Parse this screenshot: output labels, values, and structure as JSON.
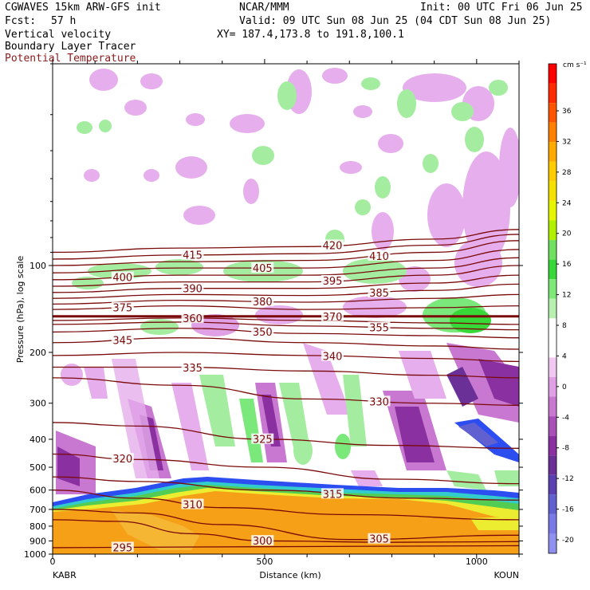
{
  "header": {
    "model": "CGWAVES 15km ARW-GFS init",
    "org": "NCAR/MMM",
    "init": "Init: 00 UTC Fri 06 Jun 25",
    "fcst_label": "Fcst:",
    "fcst_value": "57 h",
    "valid": "Valid: 09 UTC Sun 08 Jun 25 (04 CDT Sun 08 Jun 25)",
    "field1": "Vertical velocity",
    "field2": "Boundary Layer Tracer",
    "field3": "Potential Temperature",
    "xy": "XY= 187.4,173.8 to 191.8,100.1"
  },
  "colors": {
    "theta_contour": "#7a0a0a",
    "field3_text": "#8b1a1a",
    "tracer_orange": "#f5a017",
    "tracer_yellow": "#ecec30",
    "tracer_green": "#52cc52",
    "tracer_cyan": "#33cccc",
    "tracer_blue": "#2c4df0"
  },
  "chart_data": {
    "type": "heatmap",
    "xlabel": "Distance (km)",
    "ylabel": "Pressure (hPa), log scale",
    "x_ticks": [
      "0",
      "500",
      "1000"
    ],
    "y_ticks": [
      "100",
      "200",
      "300",
      "400",
      "500",
      "600",
      "700",
      "800",
      "900",
      "1000"
    ],
    "xlim": [
      0,
      1100
    ],
    "ylim": [
      1000,
      20
    ],
    "y_scale": "log",
    "start_label": "KABR",
    "end_label": "KOUN",
    "colorbar": {
      "unit": "cm s⁻¹",
      "ticks": [
        "36",
        "32",
        "28",
        "24",
        "20",
        "16",
        "12",
        "8",
        "4",
        "0",
        "-4",
        "-8",
        "-12",
        "-16",
        "-20"
      ],
      "colors": [
        "#ff0000",
        "#ff2a00",
        "#ff5500",
        "#ff8000",
        "#ffaa00",
        "#ffcc00",
        "#f5e000",
        "#e6f500",
        "#b0f000",
        "#70e060",
        "#38d838",
        "#7ee878",
        "#b8f0b0",
        "#ffffff",
        "#ffffff",
        "#f0c8f0",
        "#e0a0e6",
        "#c878d0",
        "#a850b8",
        "#8a30a0",
        "#6a3098",
        "#5a40b0",
        "#6060d0",
        "#7a7ae6",
        "#9090f0"
      ]
    },
    "theta_contours": [
      {
        "label": "295",
        "points": [
          [
            0,
            950
          ],
          [
            300,
            945
          ],
          [
            700,
            940
          ],
          [
            1100,
            935
          ]
        ]
      },
      {
        "label": "300",
        "points": [
          [
            0,
            760
          ],
          [
            150,
            770
          ],
          [
            330,
            850
          ],
          [
            500,
            900
          ],
          [
            800,
            910
          ],
          [
            1100,
            905
          ]
        ]
      },
      {
        "label": "305",
        "points": [
          [
            0,
            700
          ],
          [
            200,
            720
          ],
          [
            400,
            790
          ],
          [
            700,
            890
          ],
          [
            1100,
            860
          ]
        ]
      },
      {
        "label": "310",
        "points": [
          [
            0,
            600
          ],
          [
            200,
            640
          ],
          [
            400,
            690
          ],
          [
            700,
            730
          ],
          [
            1100,
            760
          ]
        ]
      },
      {
        "label": "315",
        "points": [
          [
            0,
            540
          ],
          [
            200,
            560
          ],
          [
            500,
            600
          ],
          [
            850,
            640
          ],
          [
            1100,
            650
          ]
        ]
      },
      {
        "label": "320",
        "points": [
          [
            0,
            450
          ],
          [
            200,
            470
          ],
          [
            500,
            500
          ],
          [
            800,
            550
          ],
          [
            1100,
            570
          ]
        ]
      },
      {
        "label": "325",
        "points": [
          [
            0,
            350
          ],
          [
            200,
            360
          ],
          [
            500,
            400
          ],
          [
            800,
            420
          ],
          [
            1100,
            430
          ]
        ]
      },
      {
        "label": "330",
        "points": [
          [
            0,
            245
          ],
          [
            300,
            260
          ],
          [
            600,
            290
          ],
          [
            900,
            300
          ],
          [
            1100,
            305
          ]
        ]
      },
      {
        "label": "335",
        "points": [
          [
            0,
            225
          ],
          [
            300,
            225
          ],
          [
            600,
            232
          ],
          [
            900,
            240
          ],
          [
            1100,
            245
          ]
        ]
      },
      {
        "label": "340",
        "points": [
          [
            0,
            205
          ],
          [
            300,
            200
          ],
          [
            600,
            205
          ],
          [
            900,
            210
          ],
          [
            1100,
            215
          ]
        ]
      },
      {
        "label": "345",
        "points": [
          [
            0,
            185
          ],
          [
            300,
            178
          ],
          [
            600,
            185
          ],
          [
            900,
            190
          ],
          [
            1100,
            195
          ]
        ]
      },
      {
        "label": "350",
        "points": [
          [
            0,
            170
          ],
          [
            300,
            165
          ],
          [
            600,
            172
          ],
          [
            900,
            175
          ],
          [
            1100,
            178
          ]
        ]
      },
      {
        "label": "355",
        "points": [
          [
            0,
            160
          ],
          [
            300,
            157
          ],
          [
            600,
            162
          ],
          [
            900,
            165
          ],
          [
            1100,
            167
          ]
        ]
      },
      {
        "label": "360",
        "points": [
          [
            0,
            155
          ],
          [
            300,
            152
          ],
          [
            600,
            155
          ],
          [
            900,
            158
          ],
          [
            1100,
            160
          ]
        ]
      },
      {
        "label": "370",
        "points": [
          [
            0,
            150
          ],
          [
            1100,
            150
          ]
        ]
      },
      {
        "label": "375",
        "points": [
          [
            0,
            142
          ],
          [
            300,
            138
          ],
          [
            600,
            142
          ],
          [
            900,
            140
          ],
          [
            1100,
            138
          ]
        ]
      },
      {
        "label": "380",
        "points": [
          [
            0,
            136
          ],
          [
            300,
            132
          ],
          [
            600,
            134
          ],
          [
            900,
            130
          ],
          [
            1100,
            126
          ]
        ]
      },
      {
        "label": "385",
        "points": [
          [
            0,
            130
          ],
          [
            300,
            126
          ],
          [
            600,
            127
          ],
          [
            900,
            122
          ],
          [
            1100,
            116
          ]
        ]
      },
      {
        "label": "390",
        "points": [
          [
            0,
            124
          ],
          [
            300,
            120
          ],
          [
            600,
            120
          ],
          [
            900,
            115
          ],
          [
            1100,
            108
          ]
        ]
      },
      {
        "label": "395",
        "points": [
          [
            0,
            118
          ],
          [
            300,
            114
          ],
          [
            600,
            114
          ],
          [
            900,
            108
          ],
          [
            1100,
            100
          ]
        ]
      },
      {
        "label": "400",
        "points": [
          [
            0,
            112
          ],
          [
            300,
            108
          ],
          [
            600,
            108
          ],
          [
            900,
            102
          ],
          [
            1100,
            94
          ]
        ]
      },
      {
        "label": "405",
        "points": [
          [
            0,
            106
          ],
          [
            300,
            102
          ],
          [
            600,
            102
          ],
          [
            900,
            96
          ],
          [
            1100,
            88
          ]
        ]
      },
      {
        "label": "410",
        "points": [
          [
            0,
            100
          ],
          [
            300,
            97
          ],
          [
            600,
            96
          ],
          [
            900,
            90
          ],
          [
            1100,
            82
          ]
        ]
      },
      {
        "label": "415",
        "points": [
          [
            0,
            95
          ],
          [
            300,
            92
          ],
          [
            600,
            91
          ],
          [
            900,
            85
          ],
          [
            1100,
            78
          ]
        ]
      },
      {
        "label": "420",
        "points": [
          [
            0,
            90
          ],
          [
            300,
            87
          ],
          [
            600,
            86
          ],
          [
            900,
            81
          ],
          [
            1100,
            75
          ]
        ]
      }
    ]
  }
}
